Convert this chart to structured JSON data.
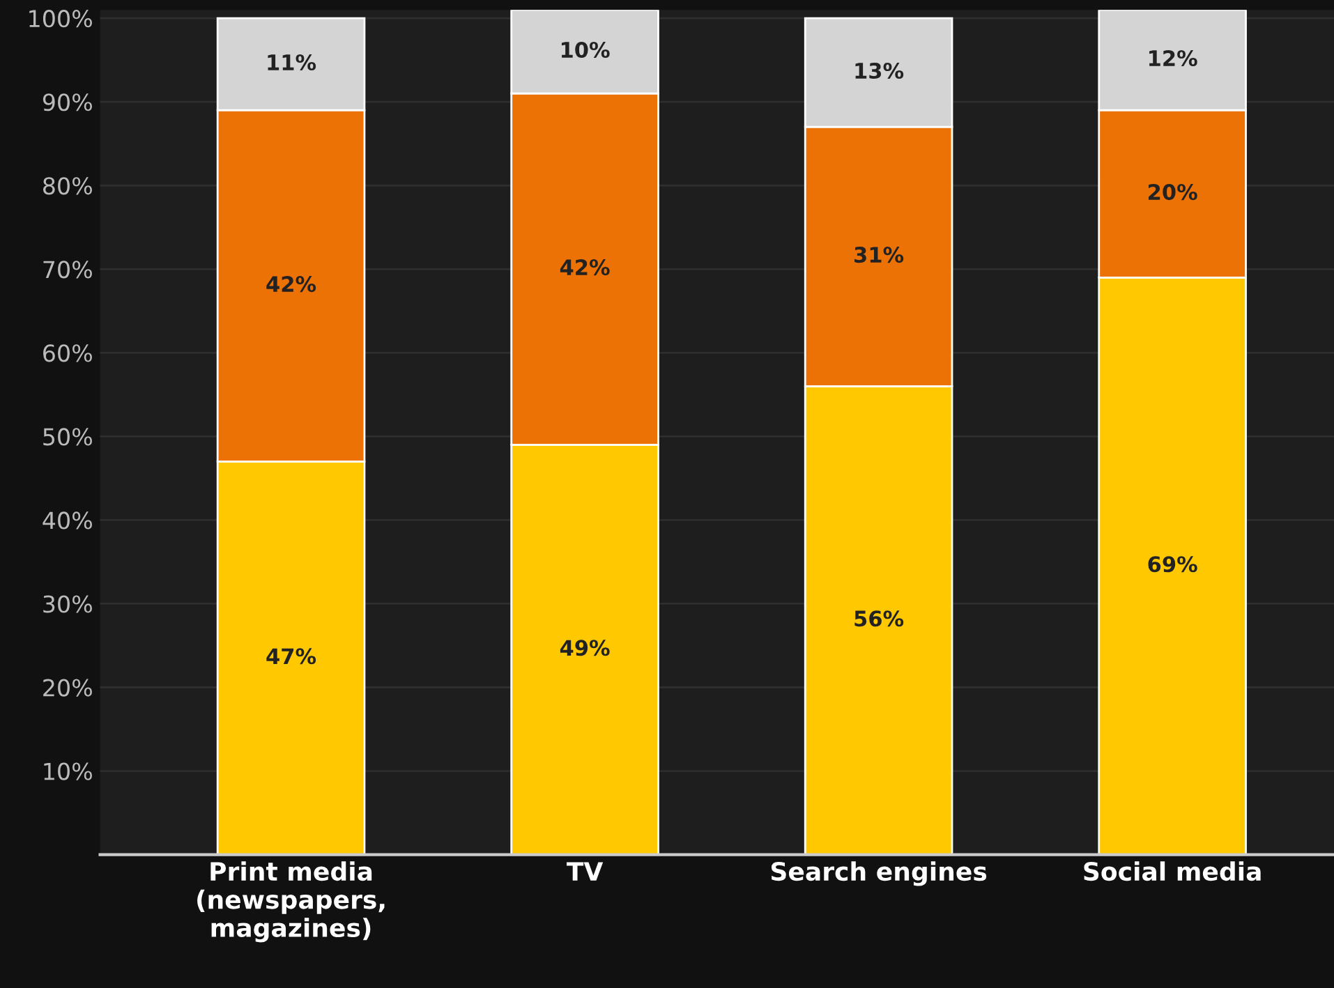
{
  "chart_data": {
    "type": "bar",
    "stacked": true,
    "grid": "y",
    "legend": false,
    "categories": [
      "Print media\n(newspapers,\nmagazines)",
      "TV",
      "Search engines",
      "Social media"
    ],
    "series": [
      {
        "color": "#ffc800",
        "values": [
          47,
          49,
          56,
          69
        ],
        "value_labels": [
          "47%",
          "49%",
          "56%",
          "69%"
        ]
      },
      {
        "color": "#ec7206",
        "values": [
          42,
          42,
          31,
          20
        ],
        "value_labels": [
          "42%",
          "42%",
          "31%",
          "20%"
        ]
      },
      {
        "color": "#d4d4d4",
        "values": [
          11,
          10,
          13,
          12
        ],
        "value_labels": [
          "11%",
          "10%",
          "13%",
          "12%"
        ]
      }
    ],
    "ylim": [
      0,
      101
    ],
    "yticks": [
      {
        "value": 10,
        "label": "10%"
      },
      {
        "value": 20,
        "label": "20%"
      },
      {
        "value": 30,
        "label": "30%"
      },
      {
        "value": 40,
        "label": "40%"
      },
      {
        "value": 50,
        "label": "50%"
      },
      {
        "value": 60,
        "label": "60%"
      },
      {
        "value": 70,
        "label": "70%"
      },
      {
        "value": 80,
        "label": "80%"
      },
      {
        "value": 90,
        "label": "90%"
      },
      {
        "value": 100,
        "label": "100%"
      }
    ]
  }
}
